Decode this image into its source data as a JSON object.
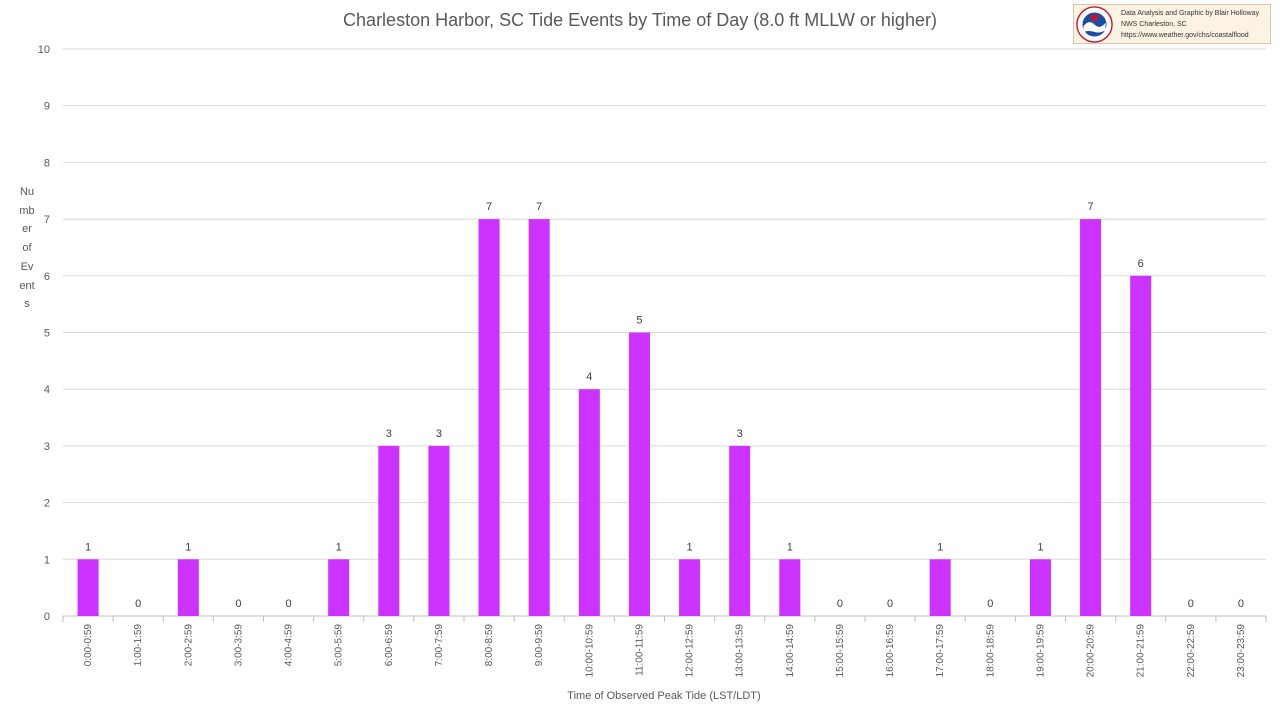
{
  "chart_data": {
    "type": "bar",
    "title": "Charleston Harbor, SC Tide Events by Time of Day (8.0 ft MLLW or higher)",
    "xlabel": "Time of Observed Peak Tide (LST/LDT)",
    "ylabel": "Number of Events",
    "ylim": [
      0,
      10
    ],
    "yticks": [
      0,
      1,
      2,
      3,
      4,
      5,
      6,
      7,
      8,
      9,
      10
    ],
    "grid": true,
    "legend": "none",
    "bar_color": "#cc33ff",
    "categories": [
      "0:00-0:59",
      "1:00-1:59",
      "2:00-2:59",
      "3:00-3:59",
      "4:00-4:59",
      "5:00-5:59",
      "6:00-6:59",
      "7:00-7:59",
      "8:00-8:59",
      "9:00-9:59",
      "10:00-10:59",
      "11:00-11:59",
      "12:00-12:59",
      "13:00-13:59",
      "14:00-14:59",
      "15:00-15:59",
      "16:00-16:59",
      "17:00-17:59",
      "18:00-18:59",
      "19:00-19:59",
      "20:00-20:59",
      "21:00-21:59",
      "22:00-22:59",
      "23:00-23:59"
    ],
    "values": [
      1,
      0,
      1,
      0,
      0,
      1,
      3,
      3,
      7,
      7,
      4,
      5,
      1,
      3,
      1,
      0,
      0,
      1,
      0,
      1,
      7,
      6,
      0,
      0
    ]
  },
  "credit": {
    "line1": "Data Analysis and Graphic by Blair Holloway",
    "line2": "NWS Charleston, SC",
    "line3": "https://www.weather.gov/chs/coastalflood",
    "logo_text": "NATIONAL WEATHER SERVICE"
  }
}
